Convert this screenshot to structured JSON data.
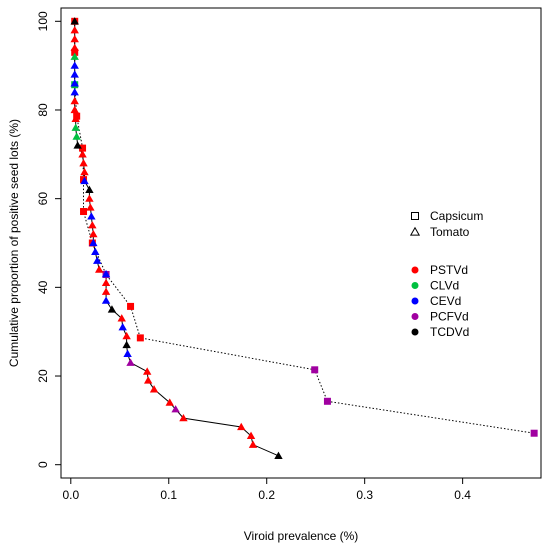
{
  "chart_data": {
    "type": "scatter",
    "xlabel": "Viroid prevalence (%)",
    "ylabel": "Cumulative proportion of positive seed lots (%)",
    "xlim": [
      -0.01,
      0.48
    ],
    "ylim": [
      -3,
      103
    ],
    "x_ticks": [
      "0.0",
      "0.1",
      "0.2",
      "0.3",
      "0.4"
    ],
    "y_ticks": [
      "0",
      "20",
      "40",
      "60",
      "80",
      "100"
    ],
    "grid": false,
    "legend_position": "right-middle",
    "shape_legend": [
      {
        "label": "Capsicum",
        "shape": "square"
      },
      {
        "label": "Tomato",
        "shape": "triangle"
      }
    ],
    "color_legend": [
      {
        "label": "PSTVd",
        "color": "#ff0000"
      },
      {
        "label": "CLVd",
        "color": "#00c040"
      },
      {
        "label": "CEVd",
        "color": "#0000ff"
      },
      {
        "label": "PCFVd",
        "color": "#a000a0"
      },
      {
        "label": "TCDVd",
        "color": "#000000"
      }
    ],
    "series": [
      {
        "shape": "square",
        "line": "dotted",
        "points": [
          {
            "x": 0.004,
            "y": 100.0,
            "c": "PSTVd"
          },
          {
            "x": 0.004,
            "y": 93.0,
            "c": "PSTVd"
          },
          {
            "x": 0.004,
            "y": 85.7,
            "c": "CLVd"
          },
          {
            "x": 0.006,
            "y": 78.6,
            "c": "PSTVd"
          },
          {
            "x": 0.012,
            "y": 71.4,
            "c": "PSTVd"
          },
          {
            "x": 0.013,
            "y": 64.3,
            "c": "PSTVd"
          },
          {
            "x": 0.013,
            "y": 57.1,
            "c": "PSTVd"
          },
          {
            "x": 0.022,
            "y": 50.0,
            "c": "PSTVd"
          },
          {
            "x": 0.036,
            "y": 42.9,
            "c": "PCFVd"
          },
          {
            "x": 0.061,
            "y": 35.7,
            "c": "PSTVd"
          },
          {
            "x": 0.071,
            "y": 28.6,
            "c": "PSTVd"
          },
          {
            "x": 0.249,
            "y": 21.4,
            "c": "PCFVd"
          },
          {
            "x": 0.262,
            "y": 14.3,
            "c": "PCFVd"
          },
          {
            "x": 0.473,
            "y": 7.1,
            "c": "PCFVd"
          }
        ]
      },
      {
        "shape": "triangle",
        "line": "solid",
        "points": [
          {
            "x": 0.004,
            "y": 100.0,
            "c": "TCDVd"
          },
          {
            "x": 0.004,
            "y": 98.0,
            "c": "PSTVd"
          },
          {
            "x": 0.004,
            "y": 96.0,
            "c": "PSTVd"
          },
          {
            "x": 0.004,
            "y": 94.0,
            "c": "PSTVd"
          },
          {
            "x": 0.004,
            "y": 92.0,
            "c": "CLVd"
          },
          {
            "x": 0.004,
            "y": 90.0,
            "c": "CEVd"
          },
          {
            "x": 0.004,
            "y": 88.0,
            "c": "CEVd"
          },
          {
            "x": 0.004,
            "y": 86.0,
            "c": "CEVd"
          },
          {
            "x": 0.004,
            "y": 84.0,
            "c": "CEVd"
          },
          {
            "x": 0.004,
            "y": 82.0,
            "c": "PSTVd"
          },
          {
            "x": 0.004,
            "y": 80.0,
            "c": "PSTVd"
          },
          {
            "x": 0.005,
            "y": 78.0,
            "c": "PSTVd"
          },
          {
            "x": 0.005,
            "y": 76.0,
            "c": "CLVd"
          },
          {
            "x": 0.006,
            "y": 74.0,
            "c": "CLVd"
          },
          {
            "x": 0.007,
            "y": 72.0,
            "c": "TCDVd"
          },
          {
            "x": 0.012,
            "y": 70.0,
            "c": "PSTVd"
          },
          {
            "x": 0.013,
            "y": 68.0,
            "c": "PSTVd"
          },
          {
            "x": 0.014,
            "y": 66.0,
            "c": "PSTVd"
          },
          {
            "x": 0.014,
            "y": 64.0,
            "c": "CEVd"
          },
          {
            "x": 0.019,
            "y": 62.0,
            "c": "TCDVd"
          },
          {
            "x": 0.019,
            "y": 60.0,
            "c": "PSTVd"
          },
          {
            "x": 0.02,
            "y": 58.0,
            "c": "PSTVd"
          },
          {
            "x": 0.021,
            "y": 56.0,
            "c": "CEVd"
          },
          {
            "x": 0.022,
            "y": 54.0,
            "c": "PSTVd"
          },
          {
            "x": 0.023,
            "y": 52.0,
            "c": "PSTVd"
          },
          {
            "x": 0.023,
            "y": 50.0,
            "c": "CEVd"
          },
          {
            "x": 0.025,
            "y": 48.0,
            "c": "CEVd"
          },
          {
            "x": 0.027,
            "y": 46.0,
            "c": "CEVd"
          },
          {
            "x": 0.029,
            "y": 44.0,
            "c": "PSTVd"
          },
          {
            "x": 0.036,
            "y": 43.0,
            "c": "CEVd"
          },
          {
            "x": 0.036,
            "y": 41.0,
            "c": "PSTVd"
          },
          {
            "x": 0.036,
            "y": 39.0,
            "c": "PSTVd"
          },
          {
            "x": 0.036,
            "y": 37.0,
            "c": "CEVd"
          },
          {
            "x": 0.042,
            "y": 35.0,
            "c": "TCDVd"
          },
          {
            "x": 0.052,
            "y": 33.0,
            "c": "PSTVd"
          },
          {
            "x": 0.053,
            "y": 31.0,
            "c": "CEVd"
          },
          {
            "x": 0.057,
            "y": 29.0,
            "c": "PSTVd"
          },
          {
            "x": 0.057,
            "y": 27.0,
            "c": "TCDVd"
          },
          {
            "x": 0.058,
            "y": 25.0,
            "c": "CEVd"
          },
          {
            "x": 0.061,
            "y": 23.0,
            "c": "PCFVd"
          },
          {
            "x": 0.078,
            "y": 21.0,
            "c": "PSTVd"
          },
          {
            "x": 0.079,
            "y": 19.0,
            "c": "PSTVd"
          },
          {
            "x": 0.085,
            "y": 17.0,
            "c": "PSTVd"
          },
          {
            "x": 0.101,
            "y": 14.0,
            "c": "PSTVd"
          },
          {
            "x": 0.107,
            "y": 12.5,
            "c": "PCFVd"
          },
          {
            "x": 0.115,
            "y": 10.5,
            "c": "PSTVd"
          },
          {
            "x": 0.174,
            "y": 8.5,
            "c": "PSTVd"
          },
          {
            "x": 0.184,
            "y": 6.5,
            "c": "PSTVd"
          },
          {
            "x": 0.186,
            "y": 4.5,
            "c": "PSTVd"
          },
          {
            "x": 0.212,
            "y": 2.0,
            "c": "TCDVd"
          }
        ]
      }
    ]
  }
}
